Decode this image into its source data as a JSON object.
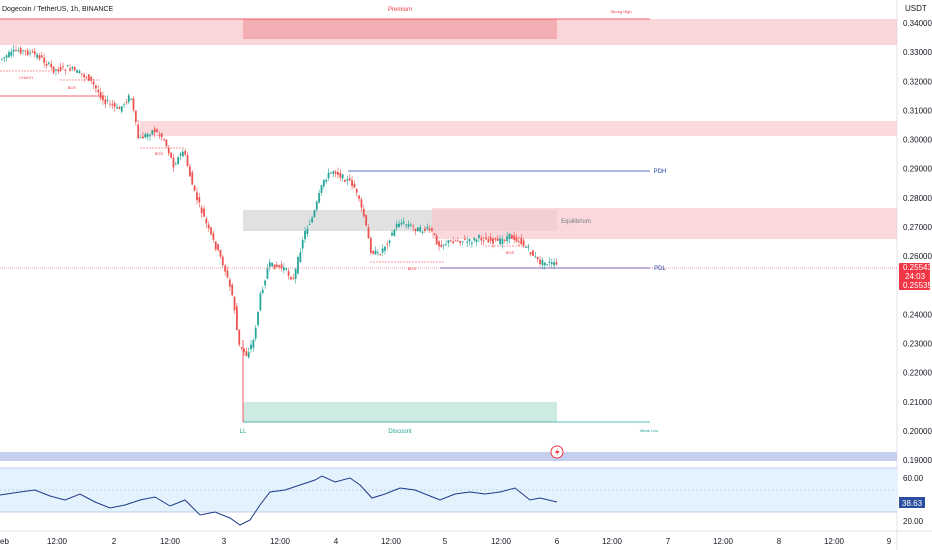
{
  "header": {
    "title": "Dogecoin / TetherUS, 1h, BINANCE",
    "currency": "USDT"
  },
  "price_axis": {
    "ticks": [
      "0.34000",
      "0.33000",
      "0.32000",
      "0.31000",
      "0.30000",
      "0.29000",
      "0.28000",
      "0.27000",
      "0.26000",
      "0.24000",
      "0.23000",
      "0.22000",
      "0.21000",
      "0.20000",
      "0.19000"
    ],
    "tick_values": [
      0.34,
      0.33,
      0.32,
      0.31,
      0.3,
      0.29,
      0.28,
      0.27,
      0.26,
      0.24,
      0.23,
      0.22,
      0.21,
      0.2,
      0.19
    ],
    "current_price": "0.25543",
    "countdown": "24:03",
    "bid_price": "0.25535"
  },
  "time_axis": {
    "labels": [
      "eb",
      "12:00",
      "2",
      "12:00",
      "3",
      "12:00",
      "4",
      "12:00",
      "5",
      "12:00",
      "6",
      "12:00",
      "7",
      "12:00",
      "8",
      "12:00",
      "9"
    ]
  },
  "annotations": {
    "premium": "Premium",
    "strong_high": "Strong High",
    "equilibrium": "Equilibrium",
    "discount": "Discount",
    "ll": "LL",
    "weak_low": "Weak Low",
    "pdh": "PDH",
    "pdl": "PDL",
    "choch": "CHoCH",
    "bos_labels": [
      "BOS",
      "BOS",
      "BOS",
      "BOS"
    ]
  },
  "rsi": {
    "value": "38.63",
    "ticks": [
      "60.00",
      "20.00"
    ],
    "tick_values": [
      60,
      20
    ]
  },
  "colors": {
    "up": "#26a69a",
    "down": "#ef5350",
    "premium_zone": "#f8c8cc",
    "discount_zone": "#cdebe2",
    "equilibrium_zone": "#d9d9d9",
    "rsi_band": "#e3f2fd",
    "rsi_line": "#1e3a8a",
    "accent_red": "#f23645",
    "pd_line": "#1e40af"
  }
}
